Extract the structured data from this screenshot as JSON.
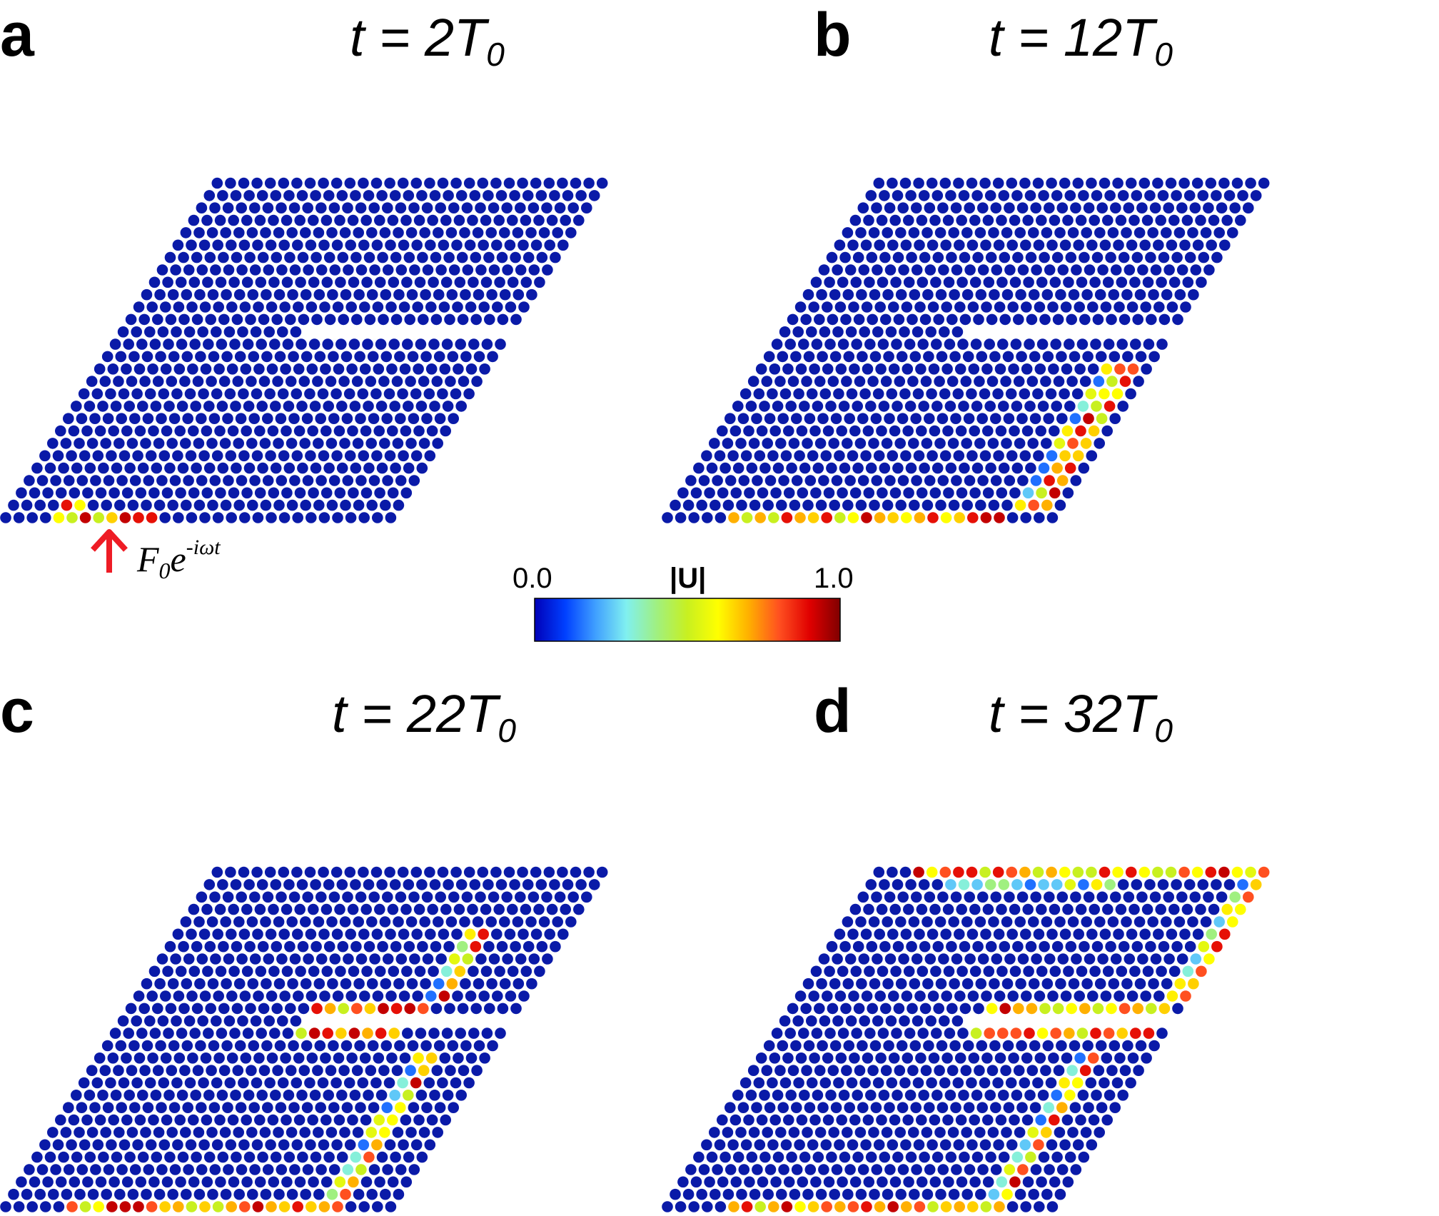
{
  "panels": [
    {
      "letter": "a",
      "title_prefix": "t = 2T",
      "title_sub": "0",
      "state": "t2"
    },
    {
      "letter": "b",
      "title_prefix": "t = 12T",
      "title_sub": "0",
      "state": "t12"
    },
    {
      "letter": "c",
      "title_prefix": "t = 22T",
      "title_sub": "0",
      "state": "t22"
    },
    {
      "letter": "d",
      "title_prefix": "t = 32T",
      "title_sub": "0",
      "state": "t32"
    }
  ],
  "force": {
    "symbol": "F",
    "sub": "0",
    "base": "e",
    "exponent": "-iωt",
    "arrow_color": "#ee1c25"
  },
  "colorbar": {
    "min_label": "0.0",
    "max_label": "1.0",
    "label": "|U|",
    "stops": [
      "#0000b8",
      "#0040ff",
      "#40a0ff",
      "#80f0f0",
      "#a0f080",
      "#c8f020",
      "#ffff00",
      "#ffb000",
      "#ff5020",
      "#e00000",
      "#800000"
    ]
  },
  "colors": {
    "bulk": "#0a1aa8"
  }
}
